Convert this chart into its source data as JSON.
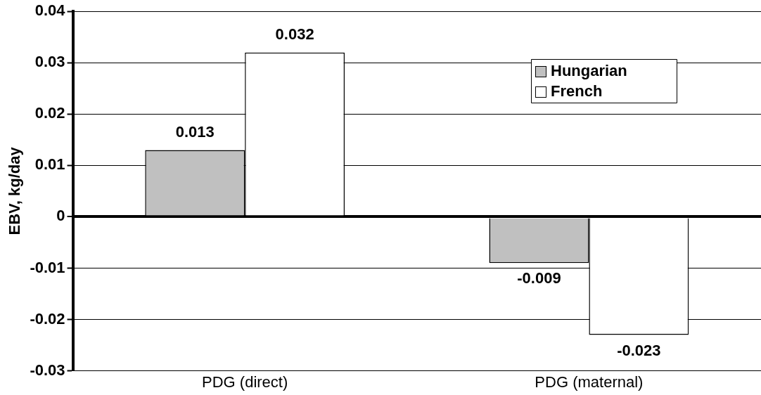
{
  "chart_data": {
    "type": "bar",
    "ylabel": "EBV, kg/day",
    "categories": [
      "PDG (direct)",
      "PDG (maternal)"
    ],
    "series": [
      {
        "name": "Hungarian",
        "color": "#c0c0c0",
        "values": [
          0.013,
          -0.009
        ]
      },
      {
        "name": "French",
        "color": "#ffffff",
        "values": [
          0.032,
          -0.023
        ]
      }
    ],
    "ylim": [
      -0.03,
      0.04
    ],
    "yticks": [
      -0.03,
      -0.02,
      -0.01,
      0,
      0.01,
      0.02,
      0.03,
      0.04
    ],
    "grid": "y",
    "legend": "top right",
    "data_labels": true
  }
}
